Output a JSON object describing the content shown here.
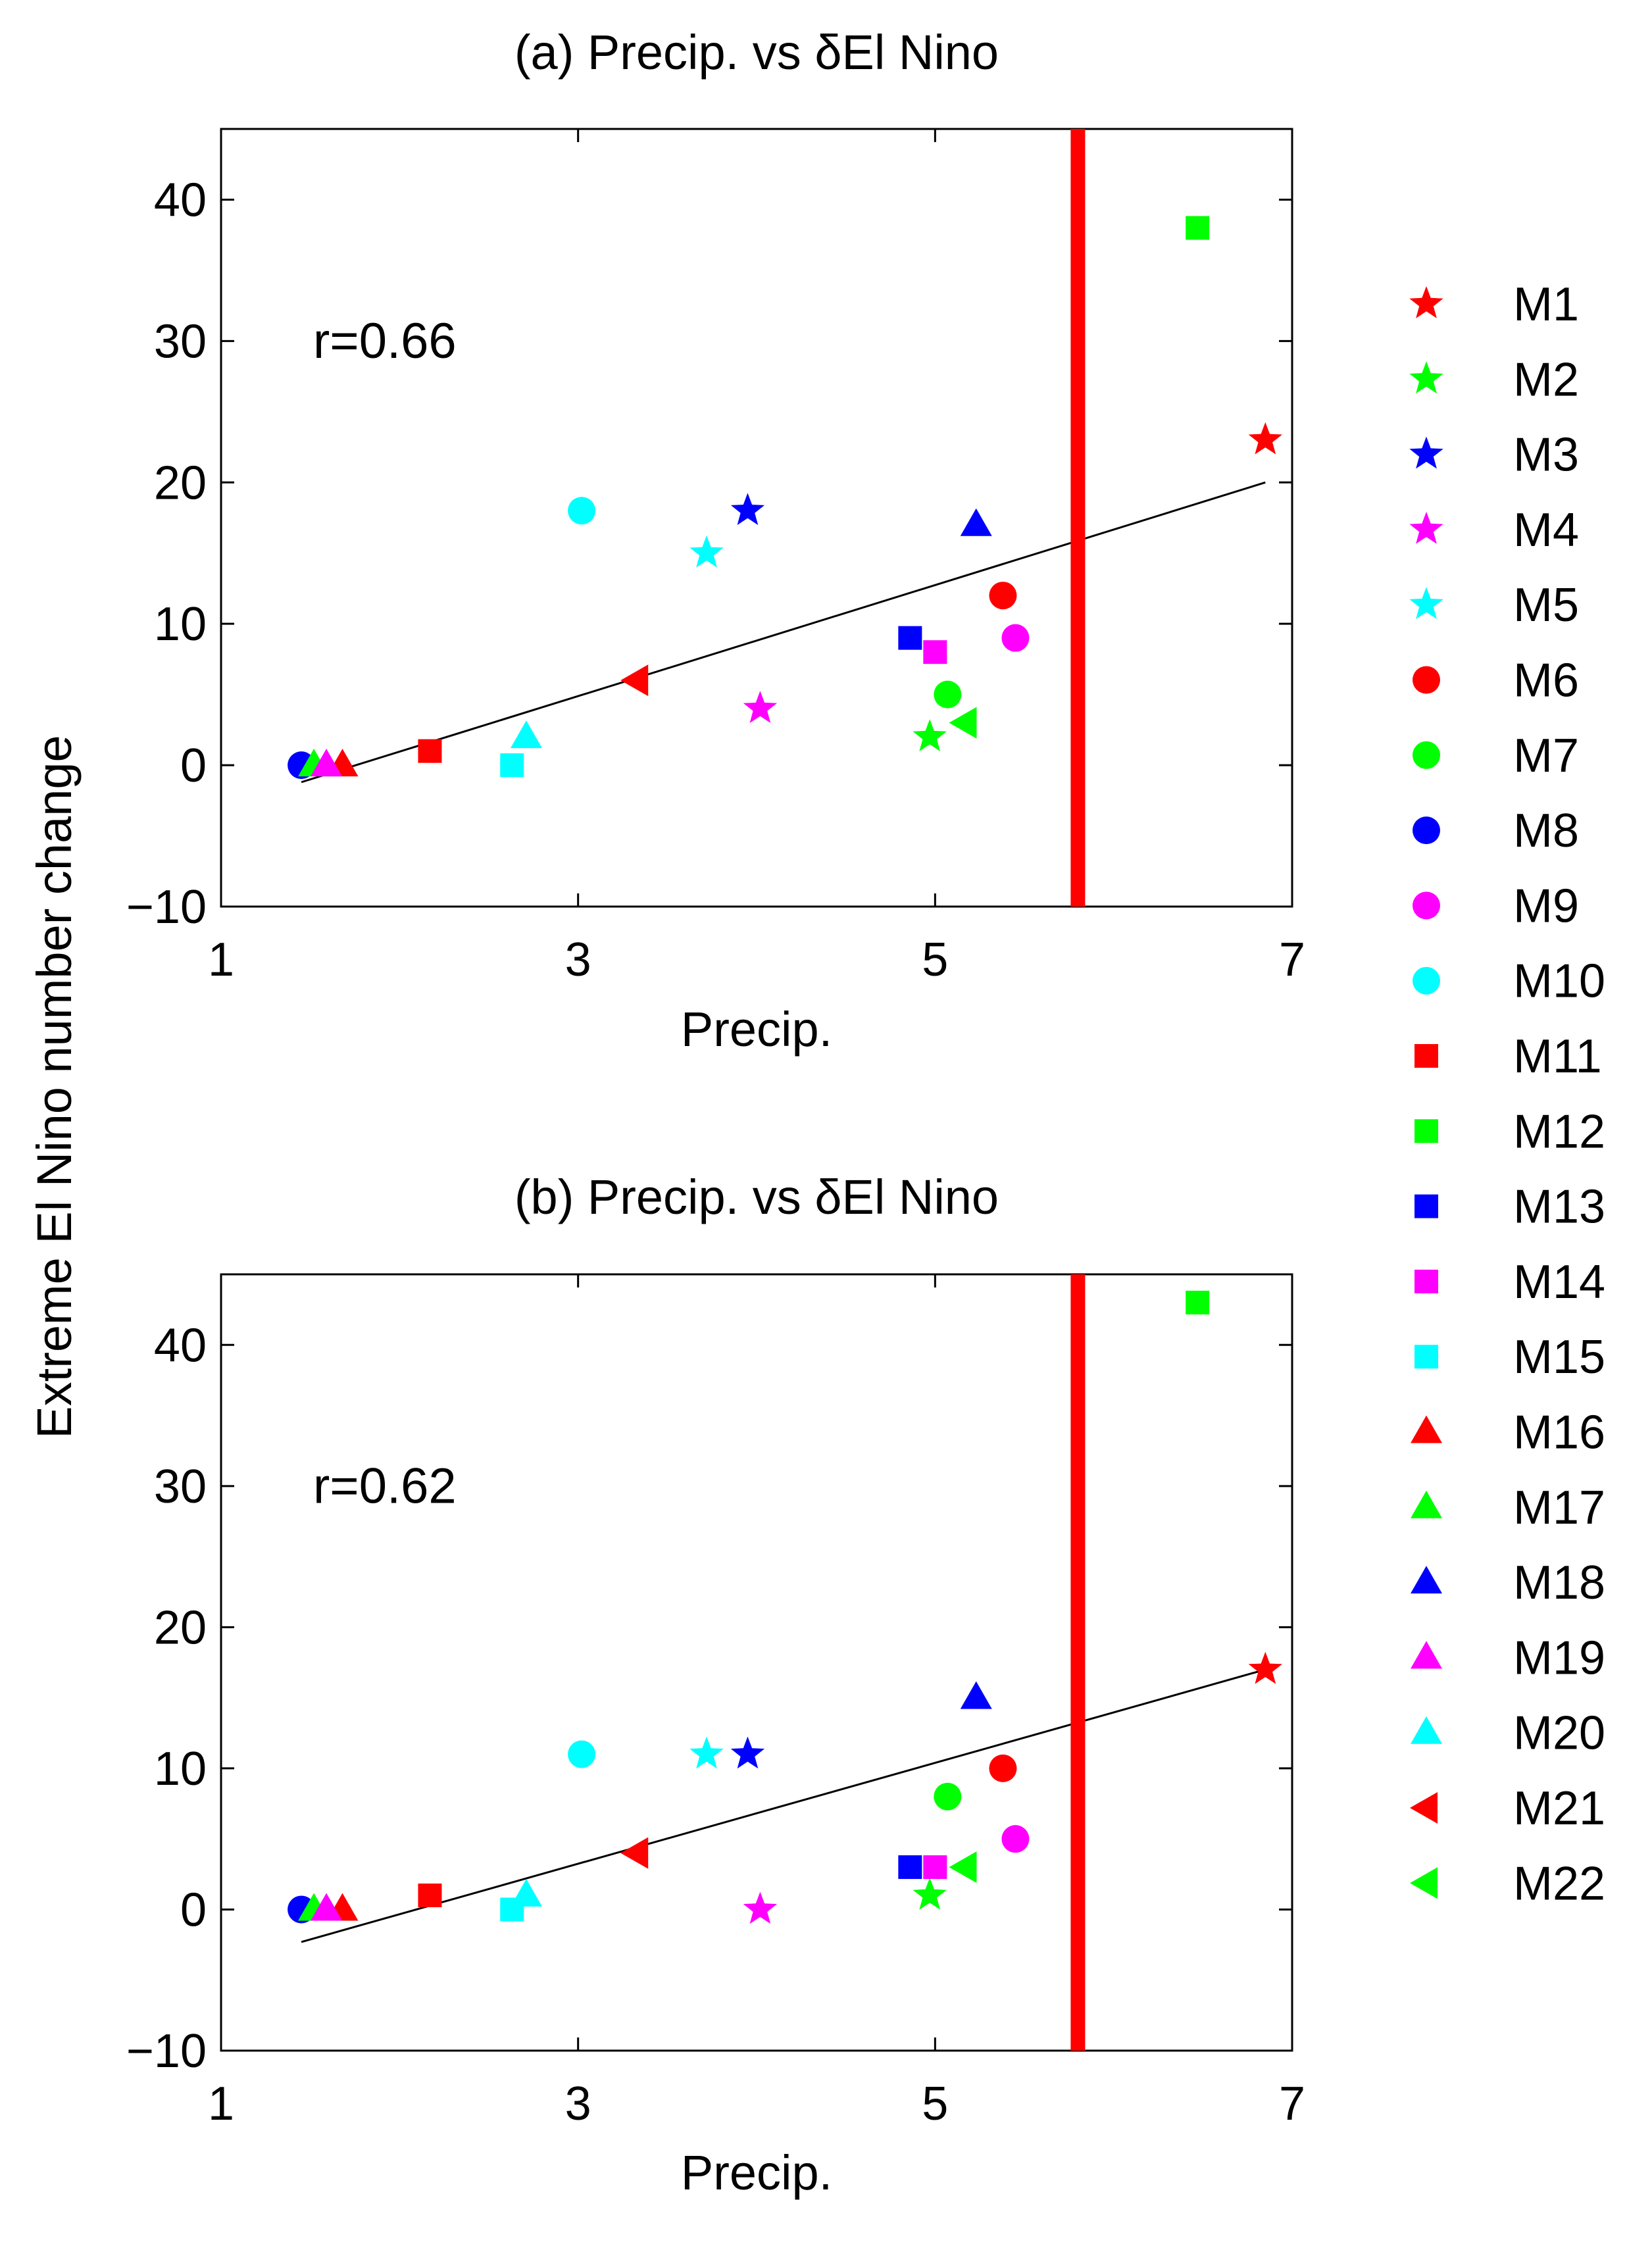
{
  "figure": {
    "shared_ylabel": "Extreme El Nino number change"
  },
  "chart_data": [
    {
      "type": "scatter",
      "title": "(a) Precip. vs δEl Nino",
      "xlabel": "Precip.",
      "ylabel": "Extreme El Nino number change",
      "xlim": [
        1,
        7
      ],
      "ylim": [
        -10,
        45
      ],
      "xticks": [
        1,
        3,
        5,
        7
      ],
      "yticks": [
        -10,
        0,
        10,
        20,
        30,
        40
      ],
      "annotation": "r=0.66",
      "vline": {
        "x": 5.8,
        "color": "#ff0000"
      },
      "fit_line": {
        "x": [
          1.45,
          6.85
        ],
        "y": [
          -1.2,
          20.0
        ]
      },
      "points": [
        {
          "model": "M1",
          "x": 6.85,
          "y": 23
        },
        {
          "model": "M2",
          "x": 4.97,
          "y": 2
        },
        {
          "model": "M3",
          "x": 3.95,
          "y": 18
        },
        {
          "model": "M4",
          "x": 4.02,
          "y": 4
        },
        {
          "model": "M5",
          "x": 3.72,
          "y": 15
        },
        {
          "model": "M6",
          "x": 5.38,
          "y": 12
        },
        {
          "model": "M7",
          "x": 5.07,
          "y": 5
        },
        {
          "model": "M8",
          "x": 1.45,
          "y": 0
        },
        {
          "model": "M9",
          "x": 5.45,
          "y": 9
        },
        {
          "model": "M10",
          "x": 3.02,
          "y": 18
        },
        {
          "model": "M11",
          "x": 2.17,
          "y": 1
        },
        {
          "model": "M12",
          "x": 6.47,
          "y": 38
        },
        {
          "model": "M13",
          "x": 4.86,
          "y": 9
        },
        {
          "model": "M14",
          "x": 5.0,
          "y": 8
        },
        {
          "model": "M15",
          "x": 2.63,
          "y": 0
        },
        {
          "model": "M16",
          "x": 1.68,
          "y": 0
        },
        {
          "model": "M17",
          "x": 1.52,
          "y": 0
        },
        {
          "model": "M18",
          "x": 5.23,
          "y": 17
        },
        {
          "model": "M19",
          "x": 1.59,
          "y": 0
        },
        {
          "model": "M20",
          "x": 2.71,
          "y": 2
        },
        {
          "model": "M21",
          "x": 3.33,
          "y": 6
        },
        {
          "model": "M22",
          "x": 5.17,
          "y": 3
        }
      ]
    },
    {
      "type": "scatter",
      "title": "(b) Precip. vs δEl Nino",
      "xlabel": "Precip.",
      "ylabel": "Extreme El Nino number change",
      "xlim": [
        1,
        7
      ],
      "ylim": [
        -10,
        45
      ],
      "xticks": [
        1,
        3,
        5,
        7
      ],
      "yticks": [
        -10,
        0,
        10,
        20,
        30,
        40
      ],
      "annotation": "r=0.62",
      "vline": {
        "x": 5.8,
        "color": "#ff0000"
      },
      "fit_line": {
        "x": [
          1.45,
          6.85
        ],
        "y": [
          -2.3,
          17.0
        ]
      },
      "points": [
        {
          "model": "M1",
          "x": 6.85,
          "y": 17
        },
        {
          "model": "M2",
          "x": 4.97,
          "y": 1
        },
        {
          "model": "M3",
          "x": 3.95,
          "y": 11
        },
        {
          "model": "M4",
          "x": 4.02,
          "y": 0
        },
        {
          "model": "M5",
          "x": 3.72,
          "y": 11
        },
        {
          "model": "M6",
          "x": 5.38,
          "y": 10
        },
        {
          "model": "M7",
          "x": 5.07,
          "y": 8
        },
        {
          "model": "M8",
          "x": 1.45,
          "y": 0
        },
        {
          "model": "M9",
          "x": 5.45,
          "y": 5
        },
        {
          "model": "M10",
          "x": 3.02,
          "y": 11
        },
        {
          "model": "M11",
          "x": 2.17,
          "y": 1
        },
        {
          "model": "M12",
          "x": 6.47,
          "y": 43
        },
        {
          "model": "M13",
          "x": 4.86,
          "y": 3
        },
        {
          "model": "M14",
          "x": 5.0,
          "y": 3
        },
        {
          "model": "M15",
          "x": 2.63,
          "y": 0
        },
        {
          "model": "M16",
          "x": 1.68,
          "y": 0
        },
        {
          "model": "M17",
          "x": 1.52,
          "y": 0
        },
        {
          "model": "M18",
          "x": 5.23,
          "y": 15
        },
        {
          "model": "M19",
          "x": 1.59,
          "y": 0
        },
        {
          "model": "M20",
          "x": 2.71,
          "y": 1
        },
        {
          "model": "M21",
          "x": 3.33,
          "y": 4
        },
        {
          "model": "M22",
          "x": 5.17,
          "y": 3
        }
      ]
    }
  ],
  "legend": {
    "placement": "right",
    "entries": [
      {
        "label": "M1",
        "marker": "star",
        "color": "#ff0000"
      },
      {
        "label": "M2",
        "marker": "star",
        "color": "#00ff00"
      },
      {
        "label": "M3",
        "marker": "star",
        "color": "#0000ff"
      },
      {
        "label": "M4",
        "marker": "star",
        "color": "#ff00ff"
      },
      {
        "label": "M5",
        "marker": "star",
        "color": "#00ffff"
      },
      {
        "label": "M6",
        "marker": "circle",
        "color": "#ff0000"
      },
      {
        "label": "M7",
        "marker": "circle",
        "color": "#00ff00"
      },
      {
        "label": "M8",
        "marker": "circle",
        "color": "#0000ff"
      },
      {
        "label": "M9",
        "marker": "circle",
        "color": "#ff00ff"
      },
      {
        "label": "M10",
        "marker": "circle",
        "color": "#00ffff"
      },
      {
        "label": "M11",
        "marker": "square",
        "color": "#ff0000"
      },
      {
        "label": "M12",
        "marker": "square",
        "color": "#00ff00"
      },
      {
        "label": "M13",
        "marker": "square",
        "color": "#0000ff"
      },
      {
        "label": "M14",
        "marker": "square",
        "color": "#ff00ff"
      },
      {
        "label": "M15",
        "marker": "square",
        "color": "#00ffff"
      },
      {
        "label": "M16",
        "marker": "triangle-up",
        "color": "#ff0000"
      },
      {
        "label": "M17",
        "marker": "triangle-up",
        "color": "#00ff00"
      },
      {
        "label": "M18",
        "marker": "triangle-up",
        "color": "#0000ff"
      },
      {
        "label": "M19",
        "marker": "triangle-up",
        "color": "#ff00ff"
      },
      {
        "label": "M20",
        "marker": "triangle-up",
        "color": "#00ffff"
      },
      {
        "label": "M21",
        "marker": "triangle-left",
        "color": "#ff0000"
      },
      {
        "label": "M22",
        "marker": "triangle-left",
        "color": "#00ff00"
      }
    ]
  }
}
